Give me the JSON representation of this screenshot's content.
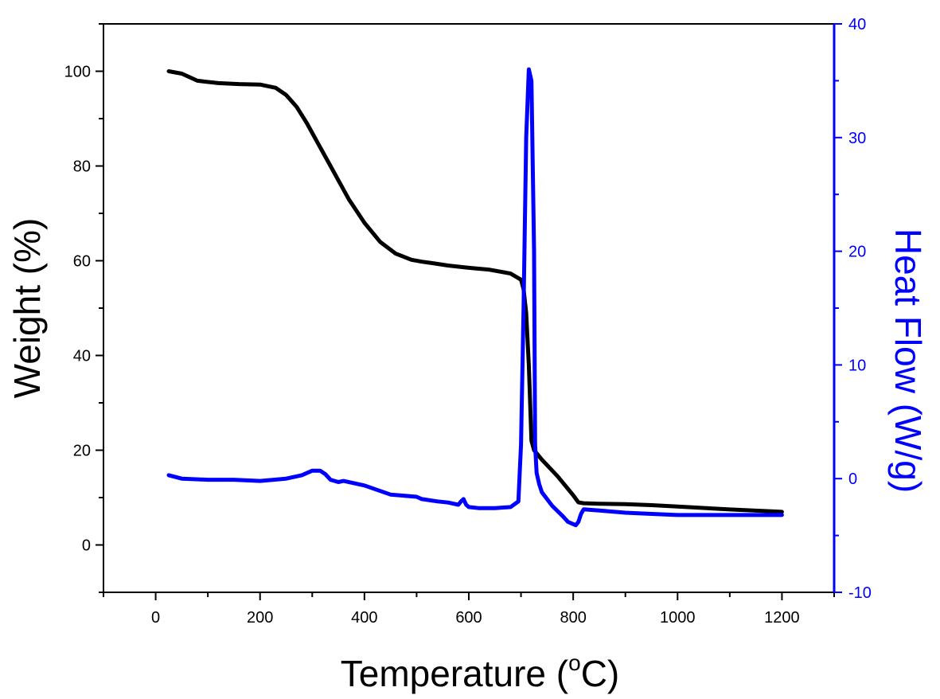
{
  "chart_data": {
    "type": "line",
    "title": "",
    "xlabel": "Temperature (",
    "xlabel_superscript": "o",
    "xlabel_suffix": "C)",
    "ylabel": "Weight (%)",
    "y2label": "Heat Flow (W/g)",
    "xlim": [
      -100,
      1300
    ],
    "ylim": [
      -10,
      110
    ],
    "y2lim": [
      -10,
      40
    ],
    "x_ticks": [
      "0",
      "200",
      "400",
      "600",
      "800",
      "1000",
      "1200"
    ],
    "y_ticks": [
      "0",
      "20",
      "40",
      "60",
      "80",
      "100"
    ],
    "y2_ticks": [
      "-10",
      "0",
      "10",
      "20",
      "30",
      "40"
    ],
    "grid": false,
    "colors": {
      "weight": "#000000",
      "heat_flow": "#0000ff",
      "right_axis": "#0000ff"
    },
    "series": [
      {
        "axis": "left",
        "x": [
          25,
          50,
          80,
          120,
          160,
          200,
          230,
          250,
          270,
          290,
          310,
          330,
          350,
          370,
          400,
          430,
          460,
          490,
          510,
          530,
          560,
          600,
          640,
          680,
          700,
          705,
          710,
          715,
          720,
          725,
          740,
          770,
          800,
          810,
          820,
          850,
          900,
          950,
          1000,
          1100,
          1200
        ],
        "values": [
          100,
          99.5,
          98,
          97.5,
          97.3,
          97.2,
          96.5,
          95,
          92.5,
          89,
          85,
          81,
          77,
          73,
          68,
          64,
          61.5,
          60.2,
          59.8,
          59.5,
          59,
          58.5,
          58.1,
          57.3,
          56,
          54,
          49,
          38,
          22,
          20,
          18,
          14.5,
          10.5,
          9,
          8.8,
          8.7,
          8.6,
          8.4,
          8.1,
          7.5,
          7.0
        ]
      },
      {
        "axis": "right",
        "x": [
          25,
          50,
          100,
          150,
          200,
          250,
          280,
          300,
          315,
          325,
          335,
          350,
          360,
          380,
          400,
          450,
          500,
          510,
          540,
          560,
          580,
          585,
          590,
          595,
          600,
          620,
          650,
          680,
          695,
          700,
          705,
          710,
          715,
          720,
          725,
          727,
          730,
          735,
          740,
          760,
          780,
          790,
          800,
          805,
          810,
          815,
          820,
          850,
          900,
          950,
          1000,
          1100,
          1200
        ],
        "values": [
          0.3,
          0,
          -0.1,
          -0.1,
          -0.2,
          0,
          0.3,
          0.7,
          0.7,
          0.4,
          -0.1,
          -0.3,
          -0.2,
          -0.4,
          -0.6,
          -1.4,
          -1.6,
          -1.8,
          -2.0,
          -2.1,
          -2.3,
          -2.0,
          -1.8,
          -2.3,
          -2.5,
          -2.6,
          -2.6,
          -2.5,
          -2.0,
          3.0,
          15.0,
          30.0,
          36.0,
          35.0,
          20.0,
          3.0,
          0.5,
          -0.5,
          -1.2,
          -2.4,
          -3.3,
          -3.8,
          -4.0,
          -4.1,
          -3.8,
          -3.1,
          -2.7,
          -2.8,
          -3.0,
          -3.1,
          -3.2,
          -3.2,
          -3.2
        ]
      }
    ]
  }
}
